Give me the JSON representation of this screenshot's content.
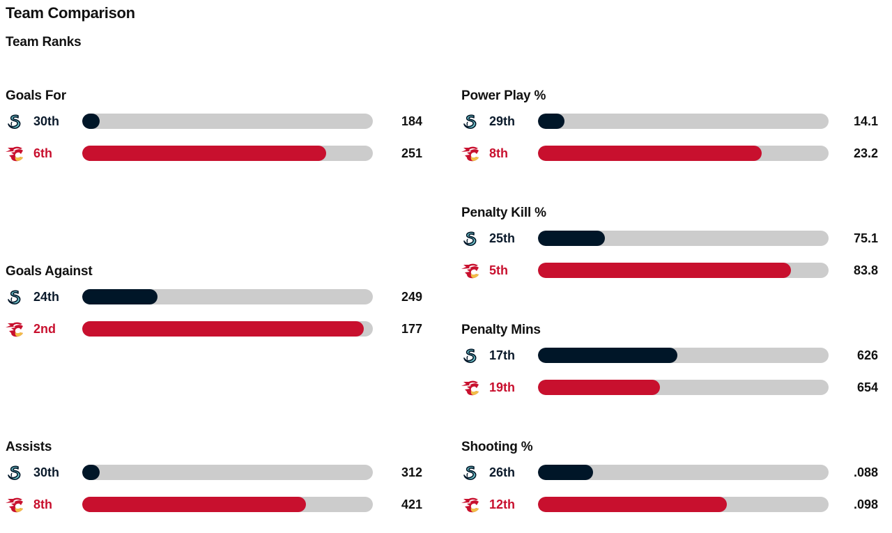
{
  "page": {
    "title": "Team Comparison",
    "subtitle": "Team Ranks"
  },
  "colors": {
    "kraken": "#001628",
    "flames": "#c8102e",
    "track": "#cccccc"
  },
  "teams": [
    {
      "key": "kraken",
      "logo_icon": "kraken-logo-icon"
    },
    {
      "key": "flames",
      "logo_icon": "flames-logo-icon"
    }
  ],
  "stats": [
    {
      "key": "goals_for",
      "title": "Goals For",
      "rows": [
        {
          "team": "kraken",
          "rank": "30th",
          "value": "184",
          "fill_pct": 6
        },
        {
          "team": "flames",
          "rank": "6th",
          "value": "251",
          "fill_pct": 84
        }
      ]
    },
    {
      "key": "goals_against",
      "title": "Goals Against",
      "rows": [
        {
          "team": "kraken",
          "rank": "24th",
          "value": "249",
          "fill_pct": 26
        },
        {
          "team": "flames",
          "rank": "2nd",
          "value": "177",
          "fill_pct": 97
        }
      ]
    },
    {
      "key": "assists",
      "title": "Assists",
      "rows": [
        {
          "team": "kraken",
          "rank": "30th",
          "value": "312",
          "fill_pct": 6
        },
        {
          "team": "flames",
          "rank": "8th",
          "value": "421",
          "fill_pct": 77
        }
      ]
    },
    {
      "key": "power_play",
      "title": "Power Play %",
      "rows": [
        {
          "team": "kraken",
          "rank": "29th",
          "value": "14.1",
          "fill_pct": 9
        },
        {
          "team": "flames",
          "rank": "8th",
          "value": "23.2",
          "fill_pct": 77
        }
      ]
    },
    {
      "key": "penalty_kill",
      "title": "Penalty Kill %",
      "rows": [
        {
          "team": "kraken",
          "rank": "25th",
          "value": "75.1",
          "fill_pct": 23
        },
        {
          "team": "flames",
          "rank": "5th",
          "value": "83.8",
          "fill_pct": 87
        }
      ]
    },
    {
      "key": "penalty_mins",
      "title": "Penalty Mins",
      "rows": [
        {
          "team": "kraken",
          "rank": "17th",
          "value": "626",
          "fill_pct": 48
        },
        {
          "team": "flames",
          "rank": "19th",
          "value": "654",
          "fill_pct": 42
        }
      ]
    },
    {
      "key": "shooting",
      "title": "Shooting %",
      "rows": [
        {
          "team": "kraken",
          "rank": "26th",
          "value": ".088",
          "fill_pct": 19
        },
        {
          "team": "flames",
          "rank": "12th",
          "value": ".098",
          "fill_pct": 65
        }
      ]
    }
  ]
}
